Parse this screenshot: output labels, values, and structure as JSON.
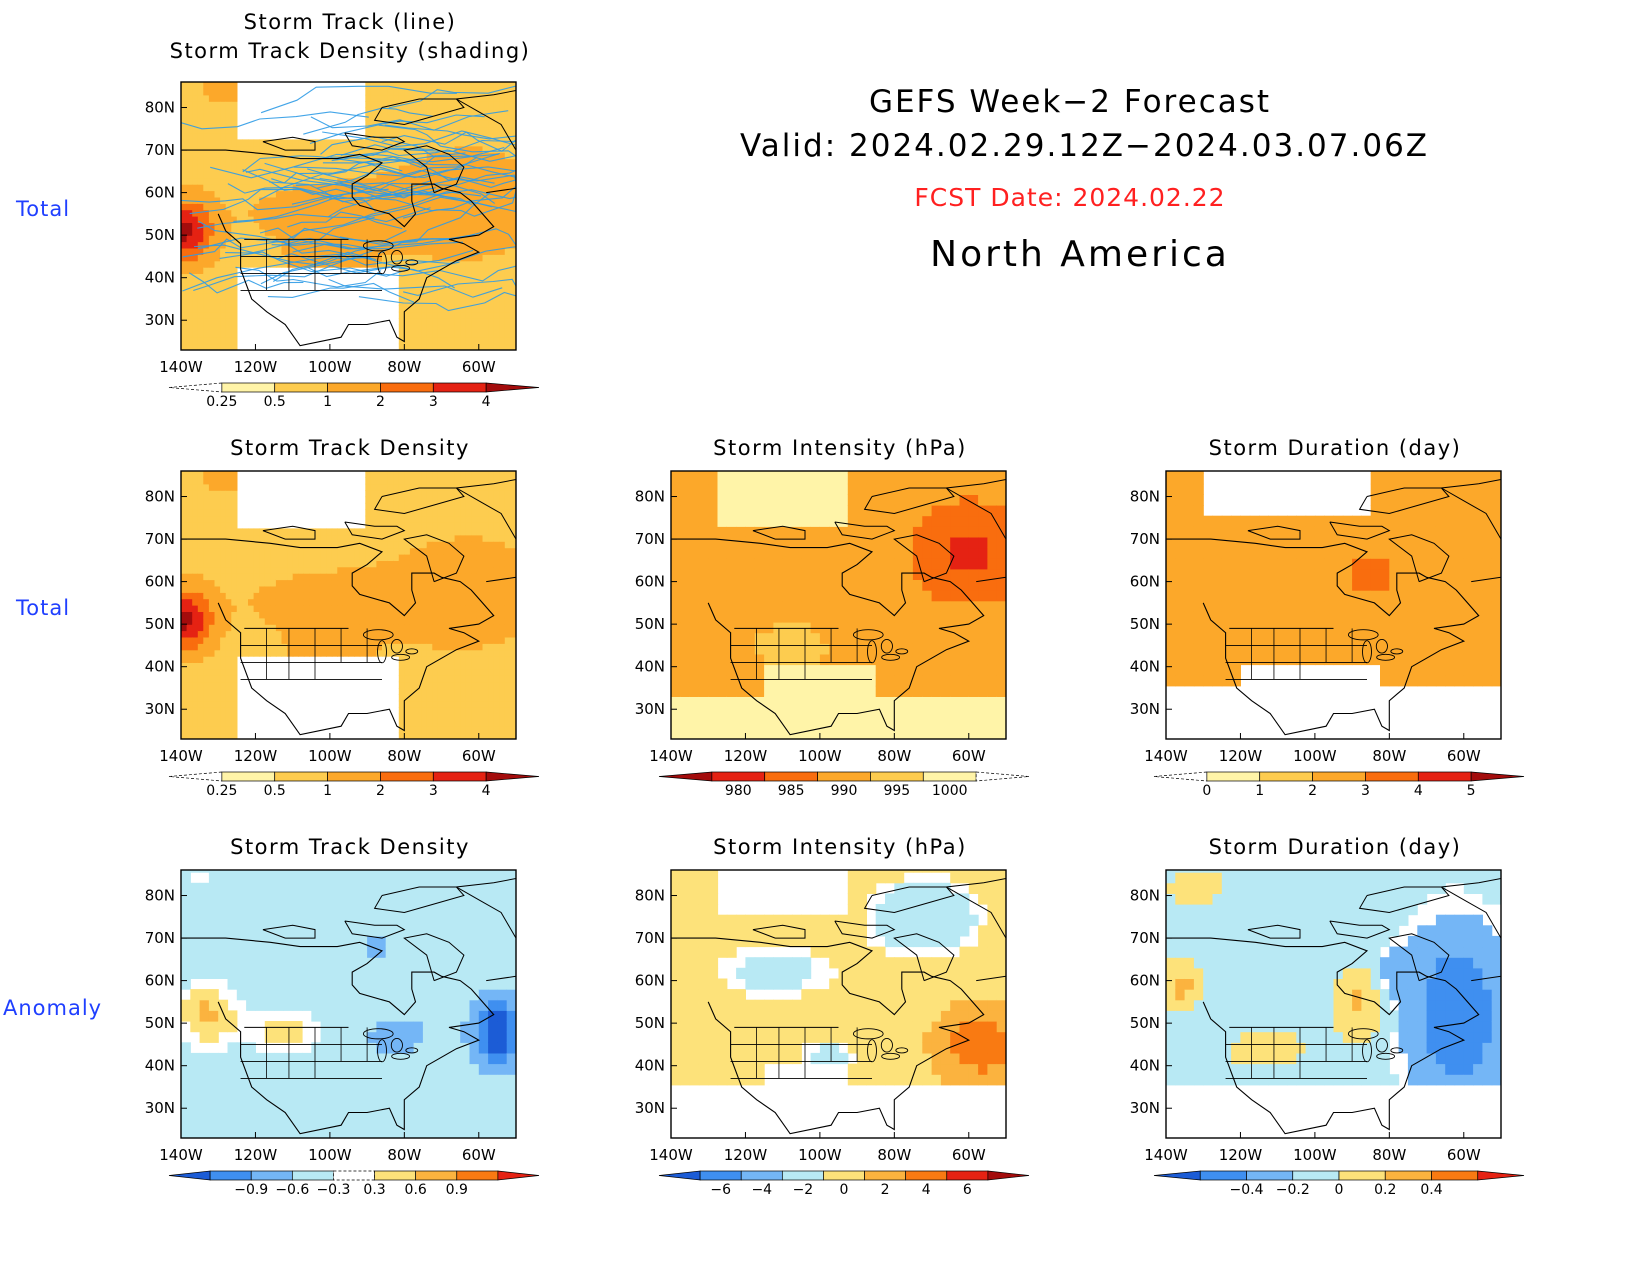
{
  "header": {
    "line1": "GEFS Week−2 Forecast",
    "line2": "Valid: 2024.02.29.12Z−2024.03.07.06Z",
    "fcst_date": "FCST Date: 2024.02.22",
    "region": "North America"
  },
  "rows": {
    "top_label": "Total",
    "middle_label": "Total",
    "bottom_label": "Anomaly"
  },
  "axes": {
    "lat_labels": [
      "80N",
      "70N",
      "60N",
      "50N",
      "40N",
      "30N"
    ],
    "lon_labels": [
      "140W",
      "120W",
      "100W",
      "80W",
      "60W"
    ]
  },
  "panels": [
    {
      "id": "track-line-density",
      "title_lines": [
        "Storm Track (line)",
        "Storm Track Density (shading)"
      ],
      "variable": "track_density",
      "overlay": "storm-tracks",
      "colorbar": {
        "labels": [
          "0.25",
          "0.5",
          "1",
          "2",
          "3",
          "4"
        ],
        "colors": [
          "#ffffff",
          "#fff4a8",
          "#fdcc4f",
          "#fca82a",
          "#f96d0e",
          "#e52213",
          "#a30c0c"
        ]
      }
    },
    {
      "id": "total-track-density",
      "title_lines": [
        "Storm Track Density"
      ],
      "variable": "track_density",
      "colorbar": {
        "labels": [
          "0.25",
          "0.5",
          "1",
          "2",
          "3",
          "4"
        ],
        "colors": [
          "#ffffff",
          "#fff4a8",
          "#fdcc4f",
          "#fca82a",
          "#f96d0e",
          "#e52213",
          "#a30c0c"
        ]
      }
    },
    {
      "id": "total-intensity",
      "title_lines": [
        "Storm Intensity (hPa)"
      ],
      "variable": "intensity",
      "colorbar": {
        "labels": [
          "980",
          "985",
          "990",
          "995",
          "1000"
        ],
        "colors": [
          "#a30c0c",
          "#e52213",
          "#f96d0e",
          "#fca82a",
          "#fdcc4f",
          "#fff4a8",
          "#ffffff"
        ]
      }
    },
    {
      "id": "total-duration",
      "title_lines": [
        "Storm Duration (day)"
      ],
      "variable": "duration",
      "colorbar": {
        "labels": [
          "0",
          "1",
          "2",
          "3",
          "4",
          "5"
        ],
        "colors": [
          "#ffffff",
          "#fff4a8",
          "#fdcc4f",
          "#fca82a",
          "#f96d0e",
          "#e52213",
          "#a30c0c"
        ]
      }
    },
    {
      "id": "anomaly-track-density",
      "title_lines": [
        "Storm Track Density"
      ],
      "variable": "density_anomaly",
      "colorbar": {
        "labels": [
          "−0.9",
          "−0.6",
          "−0.3",
          "0.3",
          "0.6",
          "0.9"
        ],
        "colors": [
          "#1c5cd6",
          "#3f8ff0",
          "#74b6f6",
          "#b8e9f4",
          "#ffffff",
          "#fde27a",
          "#fbb33f",
          "#f97a12",
          "#e52213"
        ]
      }
    },
    {
      "id": "anomaly-intensity",
      "title_lines": [
        "Storm Intensity (hPa)"
      ],
      "variable": "intensity_anomaly",
      "colorbar": {
        "labels": [
          "−6",
          "−4",
          "−2",
          "0",
          "2",
          "4",
          "6"
        ],
        "colors": [
          "#1c5cd6",
          "#3f8ff0",
          "#74b6f6",
          "#b8e9f4",
          "#fde27a",
          "#fbb33f",
          "#f97a12",
          "#e52213",
          "#a30c0c"
        ]
      }
    },
    {
      "id": "anomaly-duration",
      "title_lines": [
        "Storm Duration (day)"
      ],
      "variable": "duration_anomaly",
      "colorbar": {
        "labels": [
          "−0.4",
          "−0.2",
          "0",
          "0.2",
          "0.4"
        ],
        "colors": [
          "#1c5cd6",
          "#3f8ff0",
          "#74b6f6",
          "#b8e9f4",
          "#fde27a",
          "#fbb33f",
          "#f97a12",
          "#e52213"
        ]
      }
    }
  ]
}
